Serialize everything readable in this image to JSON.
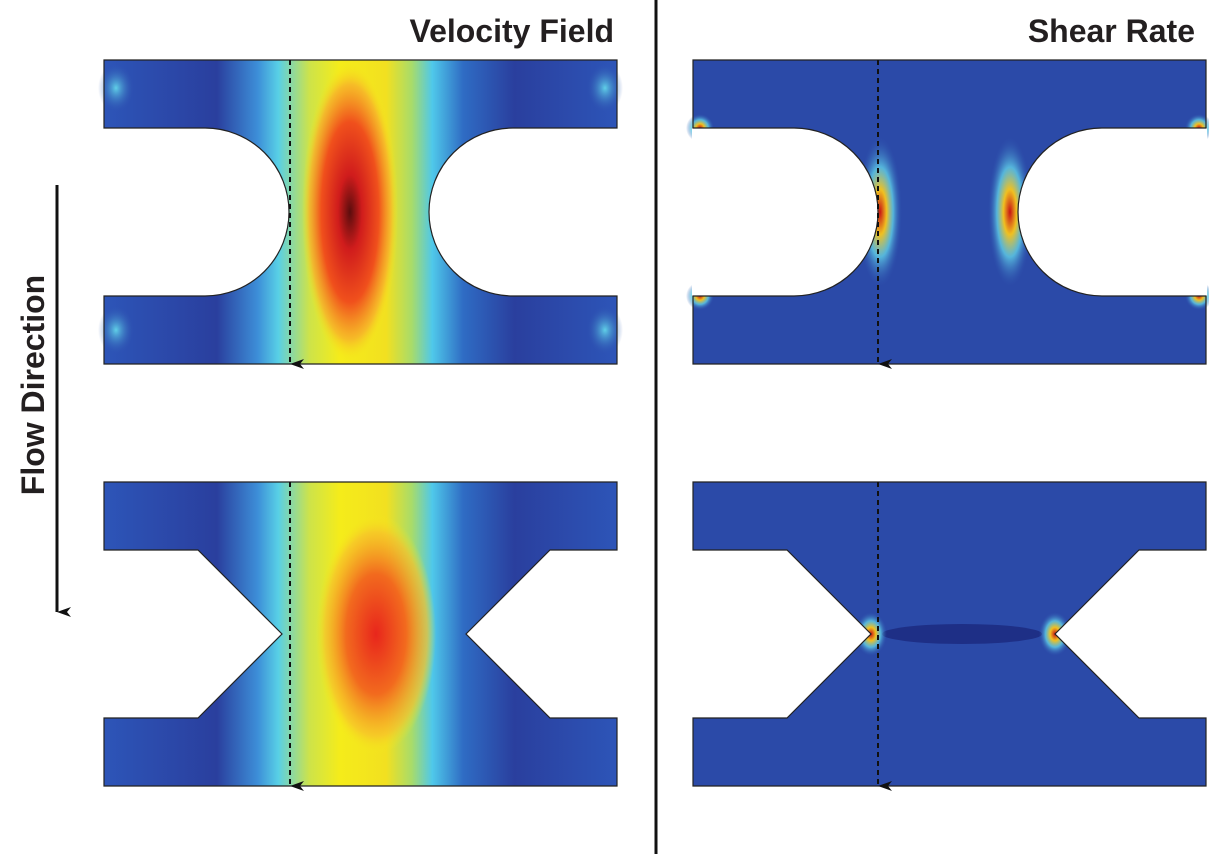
{
  "panels": [
    {
      "title": "Velocity Field"
    },
    {
      "title": "Shear Rate"
    }
  ],
  "flow_label": "Flow Direction"
}
